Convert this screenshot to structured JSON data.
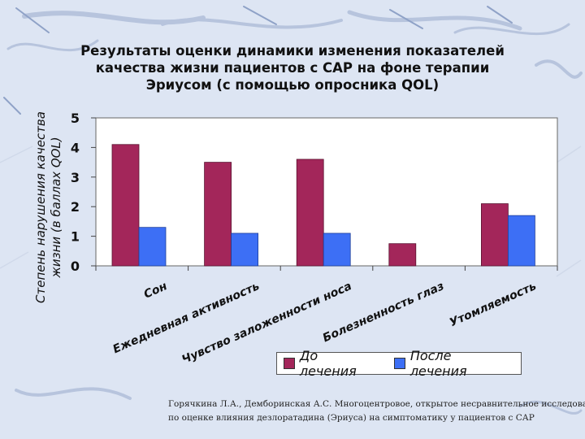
{
  "slide": {
    "title_lines": [
      "Результаты оценки динамики изменения показателей",
      "качества жизни пациентов с САР на фоне терапии",
      "Эриусом (с помощью опросника QOL)"
    ],
    "ylabel_lines": [
      "Степень нарушения качества",
      "жизни (в баллах QOL)"
    ],
    "caption_lines": [
      "Горячкина Л.А., Демборинская А.С. Многоцентровое, открытое несравнительное исследование",
      "по оценке влияния дезлоратадина (Эриуса) на симптоматику у пациентов с САР"
    ]
  },
  "colors": {
    "before": "#a3265a",
    "after": "#3d6ff5"
  },
  "chart_data": {
    "type": "bar",
    "categories": [
      "Сон",
      "Ежедневная активность",
      "Чувство заложенности носа",
      "Болезненность глаз",
      "Утомляемость"
    ],
    "series": [
      {
        "name": "До лечения",
        "values": [
          4.1,
          3.5,
          3.6,
          0.75,
          2.1
        ]
      },
      {
        "name": "После лечения",
        "values": [
          1.3,
          1.1,
          1.1,
          null,
          1.7
        ]
      }
    ],
    "yticks": [
      0,
      1,
      2,
      3,
      4,
      5
    ],
    "ylim": [
      0,
      5
    ],
    "legend": "bottom"
  }
}
